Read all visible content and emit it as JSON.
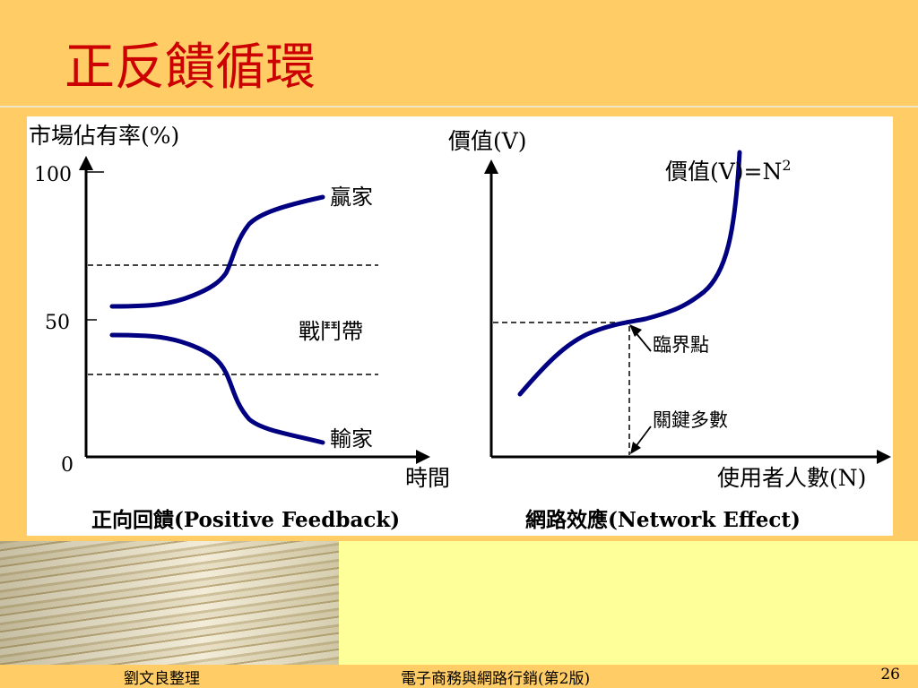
{
  "slide": {
    "title": "正反饋循環",
    "footer_left": "劉文良整理",
    "footer_center": "電子商務與網路行銷(第2版)",
    "page_number": "26"
  },
  "chart_data": [
    {
      "type": "line",
      "title": "正向回饋(Positive Feedback)",
      "ylabel": "市場佔有率(%)",
      "xlabel": "時間",
      "y_ticks": [
        "100",
        "50",
        "0"
      ],
      "ylim": [
        0,
        100
      ],
      "band_label": "戰鬥帶",
      "band_lines": [
        66,
        30
      ],
      "series": [
        {
          "name": "贏家"
        },
        {
          "name": "輸家"
        }
      ]
    },
    {
      "type": "line",
      "title": "網路效應(Network Effect)",
      "ylabel": "價值(V)",
      "xlabel": "使用者人數(N)",
      "curve_label": "價值(V)=N",
      "curve_label_sup": "2",
      "point_label": "臨界點",
      "axis_point_label": "關鍵多數"
    }
  ],
  "colors": {
    "curve": "#000080",
    "title": "#CC0000"
  }
}
